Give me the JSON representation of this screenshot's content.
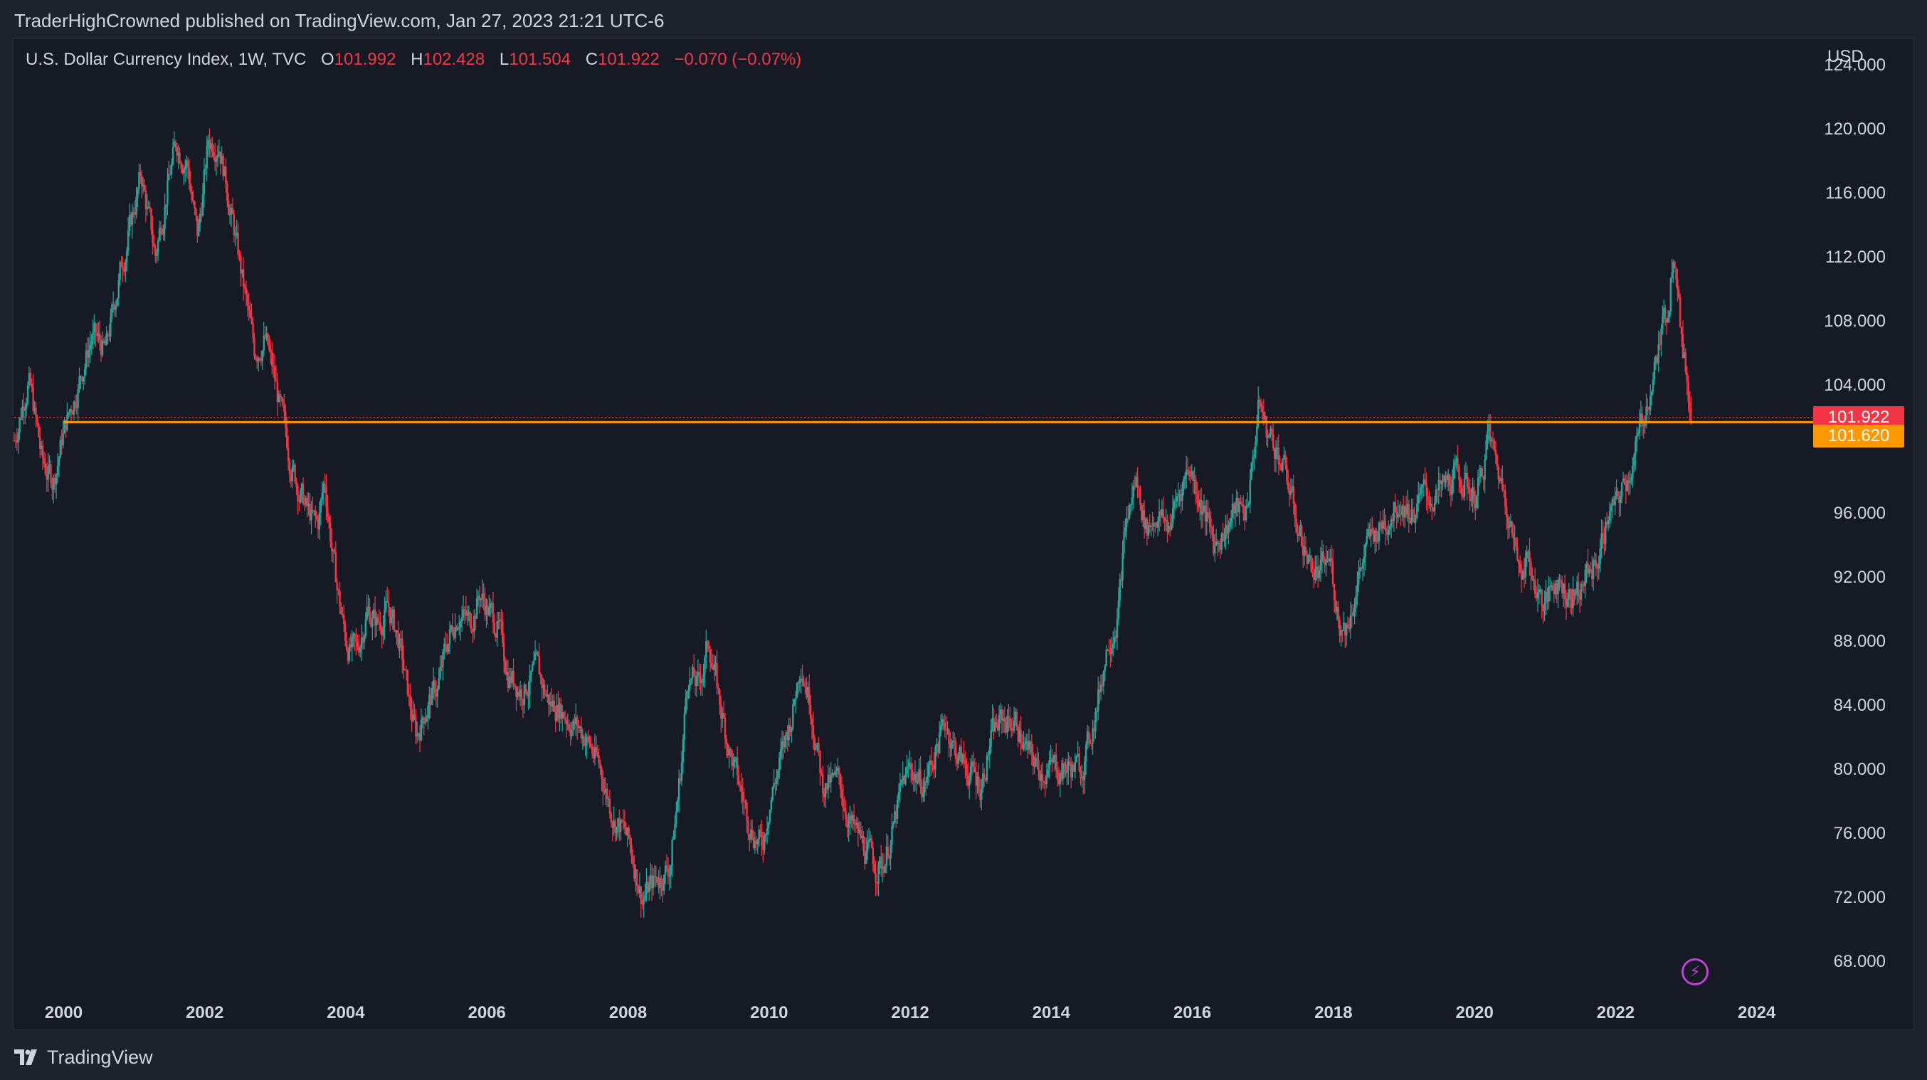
{
  "header": {
    "publisher": "TraderHighCrowned published on TradingView.com, Jan 27, 2023 21:21 UTC-6"
  },
  "legend": {
    "symbol": "U.S. Dollar Currency Index, 1W, TVC",
    "open_label": "O",
    "open": "101.992",
    "high_label": "H",
    "high": "102.428",
    "low_label": "L",
    "low": "101.504",
    "close_label": "C",
    "close": "101.922",
    "change": "−0.070 (−0.07%)"
  },
  "price_axis": {
    "currency": "USD",
    "last_price_tag": "101.922",
    "level_tag": "101.620"
  },
  "footer": {
    "brand": "TradingView"
  },
  "colors": {
    "up": "#26a69a",
    "down": "#f23645",
    "level_line": "#ff9800",
    "last_price": "#f23645",
    "background": "#161a25",
    "text": "#d1d4dc"
  },
  "chart_data": {
    "type": "candlestick",
    "title": "U.S. Dollar Currency Index, 1W, TVC",
    "x_ticks": [
      "2000",
      "2002",
      "2004",
      "2006",
      "2008",
      "2010",
      "2012",
      "2014",
      "2016",
      "2018",
      "2020",
      "2022",
      "2024"
    ],
    "y_ticks": [
      "124.000",
      "120.000",
      "116.000",
      "112.000",
      "108.000",
      "104.000",
      "96.000",
      "92.000",
      "88.000",
      "84.000",
      "80.000",
      "76.000",
      "72.000",
      "68.000"
    ],
    "ylim": [
      66,
      125.5
    ],
    "xlim": [
      1999.3,
      2024.8
    ],
    "grid": false,
    "horizontal_level": 101.62,
    "last_close": 101.922,
    "price_path": [
      [
        1999.3,
        100.5
      ],
      [
        1999.5,
        104.5
      ],
      [
        1999.7,
        99
      ],
      [
        1999.85,
        98
      ],
      [
        2000.0,
        101
      ],
      [
        2000.2,
        104
      ],
      [
        2000.4,
        107
      ],
      [
        2000.6,
        106
      ],
      [
        2000.8,
        111
      ],
      [
        2000.95,
        114
      ],
      [
        2001.1,
        117
      ],
      [
        2001.3,
        112
      ],
      [
        2001.45,
        116
      ],
      [
        2001.6,
        119
      ],
      [
        2001.75,
        118
      ],
      [
        2001.9,
        113
      ],
      [
        2002.05,
        119
      ],
      [
        2002.2,
        119.5
      ],
      [
        2002.4,
        114
      ],
      [
        2002.55,
        110
      ],
      [
        2002.7,
        106
      ],
      [
        2002.85,
        107
      ],
      [
        2003.0,
        104
      ],
      [
        2003.15,
        100.5
      ],
      [
        2003.3,
        98
      ],
      [
        2003.45,
        96
      ],
      [
        2003.6,
        95
      ],
      [
        2003.7,
        98
      ],
      [
        2003.85,
        92
      ],
      [
        2004.0,
        88
      ],
      [
        2004.15,
        87
      ],
      [
        2004.3,
        90
      ],
      [
        2004.45,
        89
      ],
      [
        2004.6,
        90
      ],
      [
        2004.75,
        88
      ],
      [
        2004.9,
        84
      ],
      [
        2005.0,
        82
      ],
      [
        2005.15,
        84
      ],
      [
        2005.3,
        85
      ],
      [
        2005.45,
        88
      ],
      [
        2005.6,
        90
      ],
      [
        2005.75,
        89
      ],
      [
        2005.9,
        91
      ],
      [
        2006.0,
        90
      ],
      [
        2006.15,
        89
      ],
      [
        2006.3,
        86
      ],
      [
        2006.5,
        85
      ],
      [
        2006.7,
        86
      ],
      [
        2006.9,
        84
      ],
      [
        2007.0,
        84
      ],
      [
        2007.2,
        83
      ],
      [
        2007.4,
        82
      ],
      [
        2007.6,
        80
      ],
      [
        2007.8,
        77
      ],
      [
        2007.95,
        76
      ],
      [
        2008.1,
        74
      ],
      [
        2008.2,
        72
      ],
      [
        2008.4,
        73
      ],
      [
        2008.6,
        74
      ],
      [
        2008.75,
        80
      ],
      [
        2008.85,
        86
      ],
      [
        2009.0,
        85
      ],
      [
        2009.15,
        88
      ],
      [
        2009.3,
        84
      ],
      [
        2009.5,
        80
      ],
      [
        2009.7,
        77
      ],
      [
        2009.9,
        75
      ],
      [
        2010.0,
        78
      ],
      [
        2010.2,
        81
      ],
      [
        2010.35,
        84
      ],
      [
        2010.45,
        87
      ],
      [
        2010.6,
        84
      ],
      [
        2010.75,
        79
      ],
      [
        2010.9,
        79
      ],
      [
        2011.0,
        79
      ],
      [
        2011.2,
        76
      ],
      [
        2011.35,
        75
      ],
      [
        2011.5,
        74
      ],
      [
        2011.6,
        74
      ],
      [
        2011.75,
        76
      ],
      [
        2011.9,
        79
      ],
      [
        2012.0,
        80
      ],
      [
        2012.2,
        79
      ],
      [
        2012.35,
        81
      ],
      [
        2012.5,
        83
      ],
      [
        2012.65,
        81
      ],
      [
        2012.8,
        80
      ],
      [
        2013.0,
        79
      ],
      [
        2013.15,
        82
      ],
      [
        2013.3,
        83
      ],
      [
        2013.5,
        83
      ],
      [
        2013.65,
        81
      ],
      [
        2013.8,
        80
      ],
      [
        2014.0,
        80
      ],
      [
        2014.2,
        80
      ],
      [
        2014.4,
        80
      ],
      [
        2014.5,
        81
      ],
      [
        2014.65,
        84
      ],
      [
        2014.8,
        88
      ],
      [
        2014.95,
        90
      ],
      [
        2015.05,
        95
      ],
      [
        2015.2,
        98
      ],
      [
        2015.35,
        95
      ],
      [
        2015.5,
        96
      ],
      [
        2015.65,
        95
      ],
      [
        2015.8,
        97
      ],
      [
        2015.95,
        99
      ],
      [
        2016.1,
        97
      ],
      [
        2016.3,
        94
      ],
      [
        2016.45,
        95
      ],
      [
        2016.6,
        96
      ],
      [
        2016.75,
        96
      ],
      [
        2016.85,
        99
      ],
      [
        2016.95,
        103
      ],
      [
        2017.05,
        101
      ],
      [
        2017.2,
        100
      ],
      [
        2017.35,
        98
      ],
      [
        2017.5,
        95
      ],
      [
        2017.65,
        93
      ],
      [
        2017.8,
        92
      ],
      [
        2017.95,
        93
      ],
      [
        2018.1,
        89
      ],
      [
        2018.2,
        89
      ],
      [
        2018.35,
        92
      ],
      [
        2018.5,
        94
      ],
      [
        2018.65,
        95
      ],
      [
        2018.8,
        96
      ],
      [
        2018.95,
        97
      ],
      [
        2019.1,
        96
      ],
      [
        2019.3,
        97
      ],
      [
        2019.5,
        97
      ],
      [
        2019.7,
        98
      ],
      [
        2019.85,
        98
      ],
      [
        2020.0,
        97
      ],
      [
        2020.1,
        98
      ],
      [
        2020.2,
        101
      ],
      [
        2020.3,
        99
      ],
      [
        2020.45,
        97
      ],
      [
        2020.6,
        93
      ],
      [
        2020.75,
        93
      ],
      [
        2020.9,
        91
      ],
      [
        2021.0,
        90
      ],
      [
        2021.15,
        92
      ],
      [
        2021.3,
        91
      ],
      [
        2021.45,
        91
      ],
      [
        2021.6,
        92
      ],
      [
        2021.75,
        93
      ],
      [
        2021.9,
        96
      ],
      [
        2022.0,
        96
      ],
      [
        2022.15,
        98
      ],
      [
        2022.3,
        100
      ],
      [
        2022.45,
        103
      ],
      [
        2022.55,
        105
      ],
      [
        2022.65,
        107
      ],
      [
        2022.75,
        109
      ],
      [
        2022.82,
        113
      ],
      [
        2022.88,
        111
      ],
      [
        2022.95,
        106
      ],
      [
        2023.02,
        104
      ],
      [
        2023.07,
        101.9
      ]
    ]
  }
}
